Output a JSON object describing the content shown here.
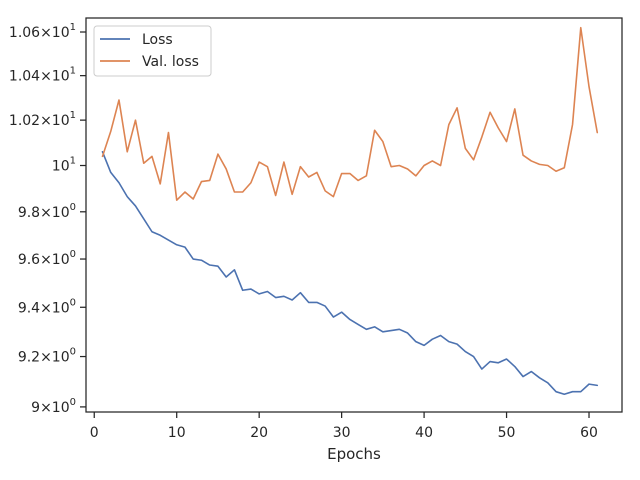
{
  "chart_data": {
    "type": "line",
    "title": "",
    "xlabel": "Epochs",
    "ylabel": "",
    "y_scale": "log",
    "xlim": [
      -1.0,
      64.0
    ],
    "ylim": [
      8.98,
      10.665
    ],
    "grid": false,
    "legend_position": "upper-left",
    "x_ticks": [
      {
        "value": 0,
        "label": "0"
      },
      {
        "value": 10,
        "label": "10"
      },
      {
        "value": 20,
        "label": "20"
      },
      {
        "value": 30,
        "label": "30"
      },
      {
        "value": 40,
        "label": "40"
      },
      {
        "value": 50,
        "label": "50"
      },
      {
        "value": 60,
        "label": "60"
      }
    ],
    "y_ticks": [
      {
        "value": 9.0,
        "base": "9",
        "exp": "0"
      },
      {
        "value": 9.2,
        "base": "9.2",
        "exp": "0"
      },
      {
        "value": 9.4,
        "base": "9.4",
        "exp": "0"
      },
      {
        "value": 9.6,
        "base": "9.6",
        "exp": "0"
      },
      {
        "value": 9.8,
        "base": "9.8",
        "exp": "0"
      },
      {
        "value": 10.0,
        "base": "10",
        "exp": "1"
      },
      {
        "value": 10.2,
        "base": "1.02",
        "exp": "1"
      },
      {
        "value": 10.4,
        "base": "1.04",
        "exp": "1"
      },
      {
        "value": 10.6,
        "base": "1.06",
        "exp": "1"
      }
    ],
    "x": [
      1,
      2,
      3,
      4,
      5,
      6,
      7,
      8,
      9,
      10,
      11,
      12,
      13,
      14,
      15,
      16,
      17,
      18,
      19,
      20,
      21,
      22,
      23,
      24,
      25,
      26,
      27,
      28,
      29,
      30,
      31,
      32,
      33,
      34,
      35,
      36,
      37,
      38,
      39,
      40,
      41,
      42,
      43,
      44,
      45,
      46,
      47,
      48,
      49,
      50,
      51,
      52,
      53,
      54,
      55,
      56,
      57,
      58,
      59,
      60,
      61
    ],
    "series": [
      {
        "name": "Loss",
        "color": "#4c72b0",
        "values": [
          10.06,
          9.97,
          9.925,
          9.865,
          9.825,
          9.77,
          9.715,
          9.7,
          9.68,
          9.66,
          9.65,
          9.6,
          9.595,
          9.575,
          9.57,
          9.525,
          9.555,
          9.47,
          9.475,
          9.455,
          9.465,
          9.44,
          9.445,
          9.43,
          9.46,
          9.42,
          9.42,
          9.405,
          9.36,
          9.38,
          9.35,
          9.33,
          9.31,
          9.32,
          9.3,
          9.305,
          9.31,
          9.295,
          9.26,
          9.245,
          9.27,
          9.285,
          9.26,
          9.25,
          9.22,
          9.2,
          9.15,
          9.18,
          9.175,
          9.19,
          9.16,
          9.12,
          9.14,
          9.115,
          9.095,
          9.06,
          9.05,
          9.06,
          9.06,
          9.09,
          9.085
        ]
      },
      {
        "name": "Val. loss",
        "color": "#dd8452",
        "values": [
          10.04,
          10.15,
          10.29,
          10.06,
          10.2,
          10.01,
          10.04,
          9.92,
          10.145,
          9.85,
          9.885,
          9.855,
          9.93,
          9.935,
          10.05,
          9.985,
          9.885,
          9.885,
          9.925,
          10.015,
          9.995,
          9.87,
          10.015,
          9.875,
          9.995,
          9.95,
          9.97,
          9.89,
          9.865,
          9.965,
          9.965,
          9.935,
          9.955,
          10.155,
          10.105,
          9.995,
          10.0,
          9.985,
          9.955,
          10.0,
          10.02,
          10.0,
          10.18,
          10.255,
          10.075,
          10.025,
          10.125,
          10.235,
          10.165,
          10.105,
          10.25,
          10.045,
          10.02,
          10.005,
          10.0,
          9.975,
          9.99,
          10.18,
          10.62,
          10.35,
          10.145
        ]
      }
    ]
  }
}
